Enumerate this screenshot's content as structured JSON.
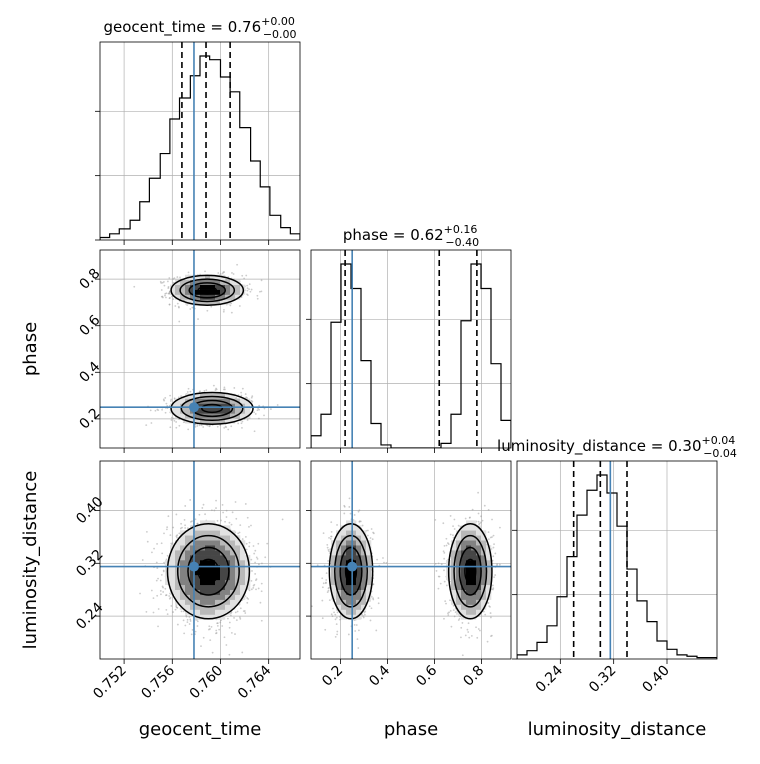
{
  "chart_data": {
    "type": "corner",
    "parameters": [
      "geocent_time",
      "phase",
      "luminosity_distance"
    ],
    "truths": {
      "geocent_time": 0.7578,
      "phase": 0.25,
      "luminosity_distance": 0.315
    },
    "titles": {
      "geocent_time": {
        "prefix": "geocent_time = 0.76",
        "sup": "+0.00",
        "sub": "−0.00"
      },
      "phase": {
        "prefix": "phase = 0.62",
        "sup": "+0.16",
        "sub": "−0.40"
      },
      "luminosity_distance": {
        "prefix": "luminosity_distance = 0.30",
        "sup": "+0.04",
        "sub": "−0.04"
      }
    },
    "axes": {
      "geocent_time": {
        "range": [
          0.75,
          0.7666
        ],
        "ticks": [
          0.752,
          0.756,
          0.76,
          0.764
        ],
        "tick_labels": [
          "0.752",
          "0.756",
          "0.760",
          "0.764"
        ],
        "label": "geocent_time"
      },
      "phase": {
        "range": [
          0.075,
          0.925
        ],
        "ticks": [
          0.2,
          0.4,
          0.6,
          0.8
        ],
        "tick_labels": [
          "0.2",
          "0.4",
          "0.6",
          "0.8"
        ],
        "label": "phase"
      },
      "luminosity_distance": {
        "range": [
          0.175,
          0.475
        ],
        "ticks": [
          0.24,
          0.32,
          0.4
        ],
        "tick_labels": [
          "0.24",
          "0.32",
          "0.40"
        ],
        "label": "luminosity_distance"
      }
    },
    "hist1d": {
      "geocent_time": {
        "bins": [
          0.75,
          0.7508,
          0.7516,
          0.7525,
          0.7533,
          0.7541,
          0.755,
          0.7558,
          0.7566,
          0.7575,
          0.7583,
          0.7591,
          0.76,
          0.7608,
          0.7616,
          0.7625,
          0.7633,
          0.7641,
          0.765,
          0.7658,
          0.7666
        ],
        "counts": [
          2,
          5,
          9,
          16,
          31,
          50,
          70,
          98,
          115,
          133,
          149,
          146,
          132,
          120,
          91,
          64,
          43,
          20,
          10,
          5
        ],
        "quantiles": [
          0.7568,
          0.7588,
          0.7608
        ]
      },
      "phase": {
        "bins": [
          0.075,
          0.1175,
          0.16,
          0.2025,
          0.245,
          0.2875,
          0.33,
          0.3725,
          0.415,
          0.4575,
          0.5,
          0.5425,
          0.585,
          0.6275,
          0.67,
          0.7125,
          0.755,
          0.7975,
          0.84,
          0.8825,
          0.925
        ],
        "counts": [
          8,
          22,
          82,
          120,
          104,
          57,
          16,
          2,
          0,
          0,
          0,
          0,
          0,
          3,
          22,
          83,
          120,
          104,
          55,
          18
        ],
        "quantiles": [
          0.22,
          0.62,
          0.78
        ]
      },
      "luminosity_distance": {
        "bins": [
          0.175,
          0.19,
          0.205,
          0.22,
          0.235,
          0.25,
          0.265,
          0.28,
          0.295,
          0.31,
          0.325,
          0.34,
          0.355,
          0.37,
          0.385,
          0.4,
          0.415,
          0.43,
          0.445,
          0.46,
          0.475
        ],
        "counts": [
          3,
          6,
          12,
          24,
          45,
          74,
          104,
          122,
          133,
          120,
          96,
          65,
          42,
          27,
          13,
          7,
          3,
          2,
          1,
          1
        ],
        "quantiles": [
          0.26,
          0.3,
          0.34
        ]
      }
    },
    "clusters": {
      "geocent_time_phase": [
        {
          "mx": 0.7589,
          "sx": 0.0015,
          "my": 0.752,
          "sy": 0.032,
          "n": 900
        },
        {
          "mx": 0.7593,
          "sx": 0.0017,
          "my": 0.245,
          "sy": 0.034,
          "n": 900
        }
      ],
      "geocent_time_luminosity_distance": [
        {
          "mx": 0.759,
          "sx": 0.0017,
          "my": 0.308,
          "sy": 0.036,
          "n": 1600
        }
      ],
      "phase_luminosity_distance": [
        {
          "mx": 0.245,
          "sx": 0.046,
          "my": 0.308,
          "sy": 0.036,
          "n": 900
        },
        {
          "mx": 0.752,
          "sx": 0.046,
          "my": 0.308,
          "sy": 0.036,
          "n": 900
        }
      ]
    },
    "colors": {
      "truth": "#4682b4",
      "line": "#000000",
      "grid": "#b0b0b0",
      "points": "#9a9a9a"
    }
  }
}
